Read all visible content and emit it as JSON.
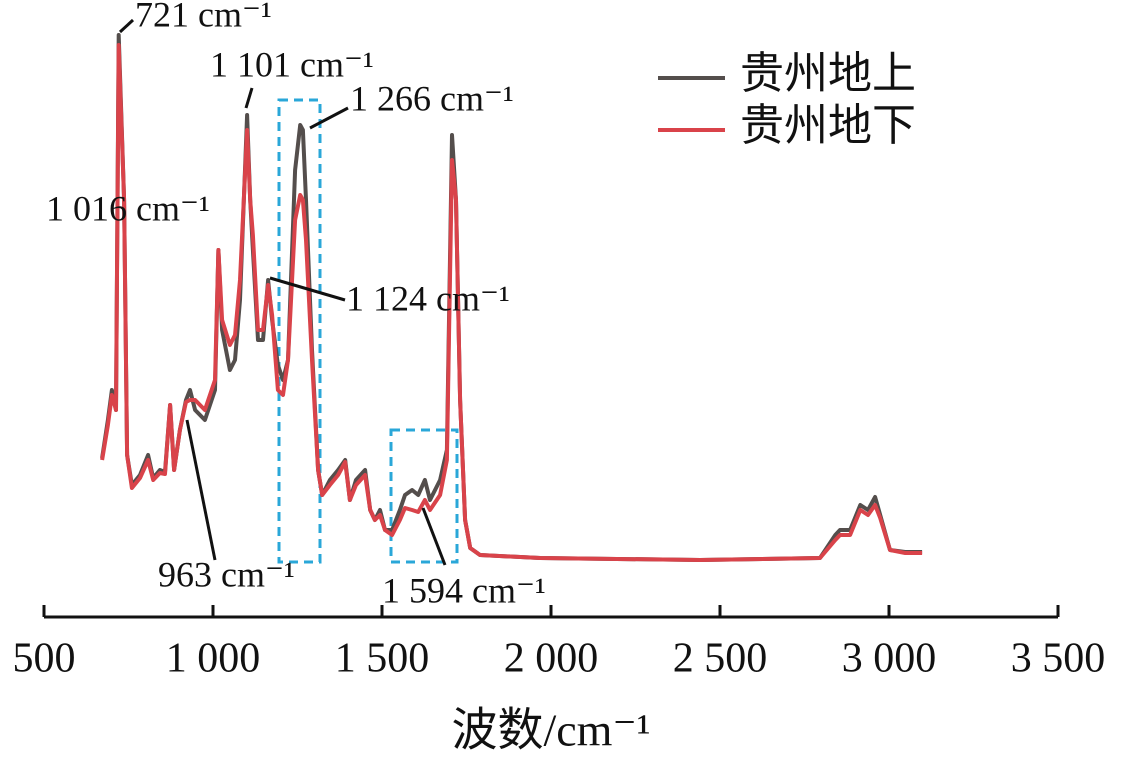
{
  "chart_data": {
    "type": "line",
    "xlabel": "波数/cm⁻¹",
    "xlim": [
      500,
      3500
    ],
    "xticks": [
      500,
      {
        "value": 1000,
        "label": "1 000"
      },
      {
        "value": 1500,
        "label": "1 500"
      },
      {
        "value": 2000,
        "label": "2 000"
      },
      {
        "value": 2500,
        "label": "2 500"
      },
      {
        "value": 3000,
        "label": "3 000"
      },
      {
        "value": 3500,
        "label": "3 500"
      }
    ],
    "ylim": [
      0,
      580
    ],
    "x": [
      672,
      689,
      701,
      713,
      721,
      737,
      746,
      760,
      784,
      808,
      823,
      843,
      858,
      873,
      885,
      902,
      920,
      932,
      947,
      976,
      1006,
      1016,
      1027,
      1050,
      1065,
      1080,
      1101,
      1110,
      1118,
      1133,
      1148,
      1163,
      1175,
      1192,
      1207,
      1222,
      1243,
      1258,
      1266,
      1275,
      1293,
      1311,
      1323,
      1346,
      1370,
      1391,
      1405,
      1423,
      1450,
      1465,
      1479,
      1494,
      1509,
      1530,
      1553,
      1568,
      1589,
      1607,
      1627,
      1642,
      1672,
      1692,
      1707,
      1719,
      1731,
      1746,
      1761,
      1790,
      1968,
      2441,
      2796,
      2841,
      2855,
      2885,
      2915,
      2938,
      2959,
      2974,
      3003,
      3048,
      3098
    ],
    "series": [
      {
        "name": "贵州地上",
        "color": "#544e4c",
        "values": [
          142,
          180,
          210,
          190,
          565,
          400,
          145,
          115,
          125,
          145,
          122,
          130,
          128,
          195,
          130,
          170,
          200,
          210,
          190,
          180,
          210,
          350,
          270,
          230,
          240,
          300,
          485,
          400,
          350,
          260,
          260,
          320,
          280,
          235,
          220,
          240,
          430,
          475,
          470,
          400,
          250,
          130,
          105,
          120,
          130,
          140,
          100,
          120,
          130,
          90,
          80,
          90,
          70,
          70,
          90,
          105,
          110,
          105,
          120,
          100,
          120,
          150,
          465,
          400,
          200,
          80,
          52,
          45,
          42,
          40,
          42,
          65,
          70,
          70,
          95,
          90,
          103,
          85,
          50,
          48,
          48
        ]
      },
      {
        "name": "贵州地下",
        "color": "#d9434a",
        "values": [
          140,
          175,
          205,
          190,
          555,
          400,
          145,
          112,
          122,
          140,
          120,
          127,
          126,
          195,
          130,
          170,
          198,
          200,
          200,
          190,
          220,
          350,
          280,
          255,
          265,
          320,
          470,
          400,
          365,
          270,
          270,
          315,
          285,
          210,
          205,
          240,
          380,
          405,
          400,
          360,
          240,
          130,
          105,
          115,
          125,
          138,
          100,
          115,
          125,
          90,
          80,
          85,
          70,
          65,
          80,
          92,
          90,
          88,
          100,
          90,
          105,
          140,
          440,
          400,
          200,
          80,
          52,
          45,
          42,
          40,
          42,
          60,
          65,
          65,
          90,
          85,
          95,
          82,
          50,
          47,
          47
        ]
      }
    ],
    "annotations": [
      "721 cm⁻¹",
      "1 101 cm⁻¹",
      "1 266 cm⁻¹",
      "1 016 cm⁻¹",
      "1 124 cm⁻¹",
      "963 cm⁻¹",
      "1 594 cm⁻¹"
    ]
  }
}
